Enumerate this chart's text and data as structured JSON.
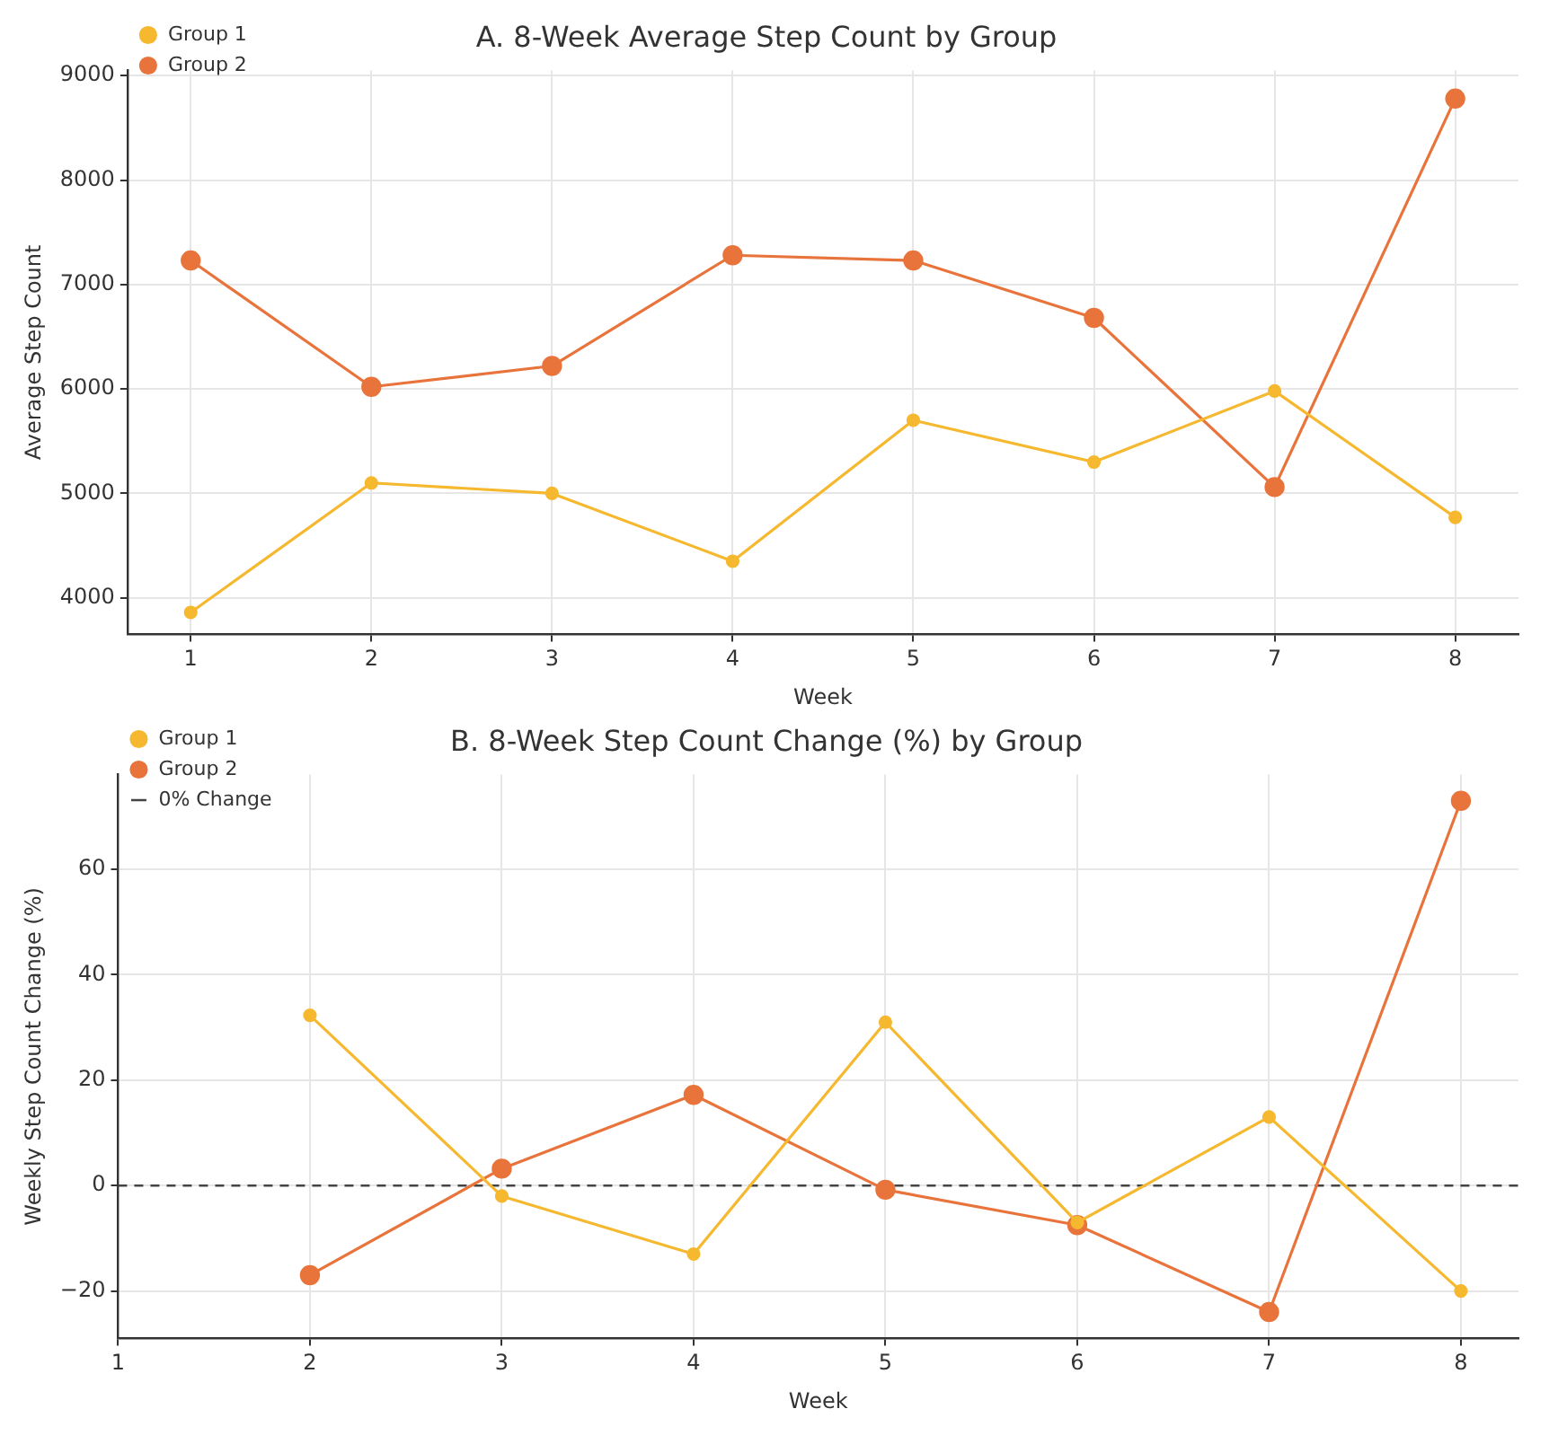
{
  "chart_data": [
    {
      "type": "line",
      "title": "A. 8-Week Average Step Count by Group",
      "xlabel": "Week",
      "ylabel": "Average Step Count",
      "x": [
        1,
        2,
        3,
        4,
        5,
        6,
        7,
        8
      ],
      "series": [
        {
          "name": "Group 1",
          "color": "#f5b82e",
          "values": [
            3860,
            5100,
            5000,
            4350,
            5700,
            5300,
            5980,
            4770
          ]
        },
        {
          "name": "Group 2",
          "color": "#e8743b",
          "values": [
            7230,
            6020,
            6220,
            7280,
            7230,
            6680,
            5060,
            8780
          ]
        }
      ],
      "xlim": [
        0.65,
        8.35
      ],
      "xticks": [
        1,
        2,
        3,
        4,
        5,
        6,
        7,
        8
      ],
      "ylim": [
        3650,
        9050
      ],
      "yticks": [
        4000,
        5000,
        6000,
        7000,
        8000,
        9000
      ],
      "grid": true,
      "legend": "top left",
      "marker": "circle",
      "line_style": "solid"
    },
    {
      "type": "line",
      "title": "B. 8-Week Step Count Change (%) by Group",
      "xlabel": "Week",
      "ylabel": "Weekly Step Count Change (%)",
      "x": [
        2,
        3,
        4,
        5,
        6,
        7,
        8
      ],
      "series": [
        {
          "name": "Group 1",
          "color": "#f5b82e",
          "values": [
            32.3,
            -2,
            -13,
            31,
            -7,
            13,
            -20
          ]
        },
        {
          "name": "Group 2",
          "color": "#e8743b",
          "values": [
            -17,
            3.2,
            17.2,
            -0.8,
            -7.5,
            -24,
            73
          ]
        }
      ],
      "ref_lines": [
        {
          "axis": "y",
          "value": 0,
          "label": "0% Change",
          "color": "#444444",
          "line_style": "dashed"
        }
      ],
      "xlim": [
        1,
        8.3
      ],
      "xticks": [
        1,
        2,
        3,
        4,
        5,
        6,
        7,
        8
      ],
      "ylim": [
        -29,
        78
      ],
      "yticks": [
        {
          "value": -20,
          "label": "−20"
        },
        0,
        20,
        40,
        60
      ],
      "grid": true,
      "legend": "top left",
      "marker": "circle",
      "line_style": "solid"
    }
  ]
}
